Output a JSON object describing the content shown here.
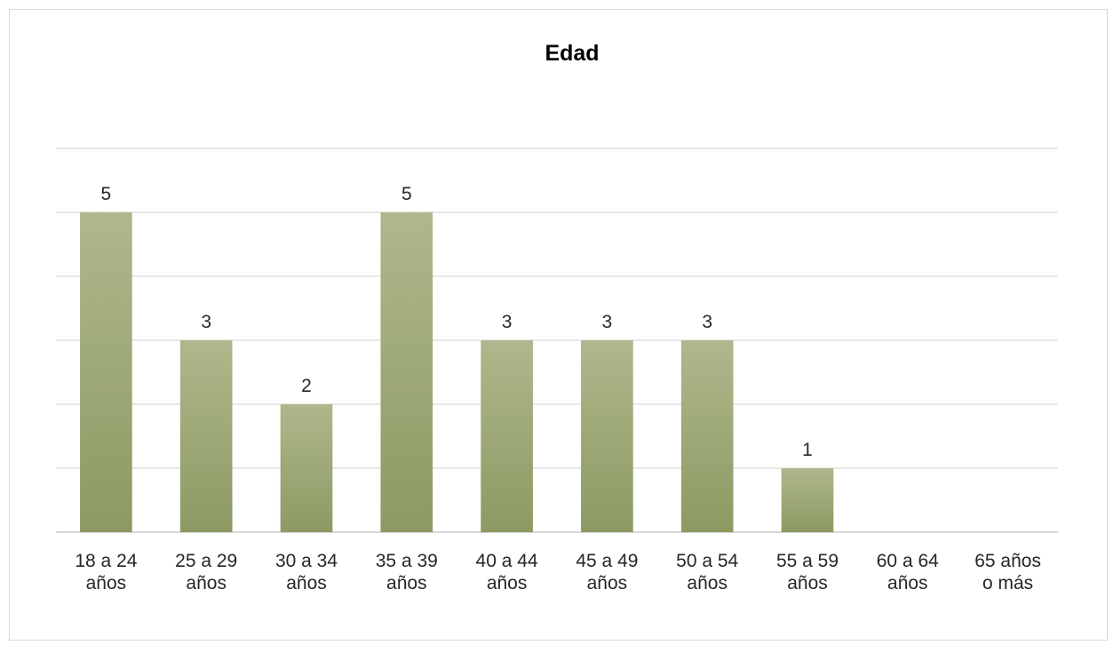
{
  "chart_data": {
    "type": "bar",
    "title": "Edad",
    "xlabel": "",
    "ylabel": "",
    "categories": [
      [
        "18 a 24",
        "años"
      ],
      [
        "25 a 29",
        "años"
      ],
      [
        "30 a 34",
        "años"
      ],
      [
        "35 a 39",
        "años"
      ],
      [
        "40 a 44",
        "años"
      ],
      [
        "45 a 49",
        "años"
      ],
      [
        "50 a 54",
        "años"
      ],
      [
        "55 a 59",
        "años"
      ],
      [
        "60 a 64",
        "años"
      ],
      [
        "65 años",
        "o más"
      ]
    ],
    "values": [
      5,
      3,
      2,
      5,
      3,
      3,
      3,
      1,
      0,
      0
    ],
    "data_labels": [
      "5",
      "3",
      "2",
      "5",
      "3",
      "3",
      "3",
      "1",
      "",
      ""
    ],
    "ylim": [
      0,
      6
    ],
    "grid": true,
    "legend": "none",
    "colors": {
      "bar_top": "#afb78c",
      "bar_bottom": "#8c9a62",
      "grid": "#d9d9d9",
      "axis": "#bfbfbf"
    }
  }
}
